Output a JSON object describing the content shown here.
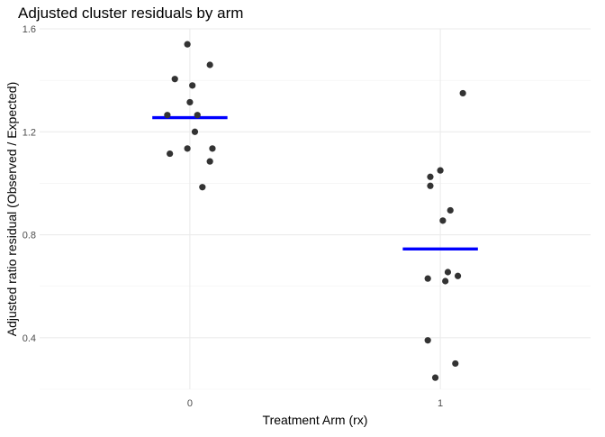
{
  "chart_data": {
    "type": "scatter",
    "title": "Adjusted cluster residuals by arm",
    "xlabel": "Treatment Arm (rx)",
    "ylabel": "Adjusted ratio residual (Observed / Expected)",
    "categories": [
      "0",
      "1"
    ],
    "ylim": [
      0.2,
      1.6
    ],
    "y_ticks": [
      0.4,
      0.8,
      1.2,
      1.6
    ],
    "y_tick_labels": [
      "0.4",
      "0.8",
      "1.2",
      "1.6"
    ],
    "grid": true,
    "legend": "none",
    "point_color": "#333333",
    "mean_color": "#0000ff",
    "groups": [
      {
        "category": "0",
        "mean": 1.255,
        "points": [
          {
            "jitter": -0.01,
            "y": 1.54
          },
          {
            "jitter": 0.08,
            "y": 1.46
          },
          {
            "jitter": -0.06,
            "y": 1.405
          },
          {
            "jitter": 0.01,
            "y": 1.38
          },
          {
            "jitter": 0.0,
            "y": 1.315
          },
          {
            "jitter": -0.09,
            "y": 1.265
          },
          {
            "jitter": 0.03,
            "y": 1.265
          },
          {
            "jitter": 0.02,
            "y": 1.2
          },
          {
            "jitter": -0.01,
            "y": 1.135
          },
          {
            "jitter": 0.09,
            "y": 1.135
          },
          {
            "jitter": -0.08,
            "y": 1.115
          },
          {
            "jitter": 0.08,
            "y": 1.085
          },
          {
            "jitter": 0.05,
            "y": 0.985
          }
        ]
      },
      {
        "category": "1",
        "mean": 0.745,
        "points": [
          {
            "jitter": 0.09,
            "y": 1.35
          },
          {
            "jitter": 0.0,
            "y": 1.05
          },
          {
            "jitter": -0.04,
            "y": 1.025
          },
          {
            "jitter": -0.04,
            "y": 0.99
          },
          {
            "jitter": 0.04,
            "y": 0.895
          },
          {
            "jitter": 0.01,
            "y": 0.855
          },
          {
            "jitter": 0.03,
            "y": 0.655
          },
          {
            "jitter": 0.07,
            "y": 0.64
          },
          {
            "jitter": -0.05,
            "y": 0.63
          },
          {
            "jitter": 0.02,
            "y": 0.62
          },
          {
            "jitter": -0.05,
            "y": 0.39
          },
          {
            "jitter": 0.06,
            "y": 0.3
          },
          {
            "jitter": -0.02,
            "y": 0.245
          }
        ]
      }
    ]
  }
}
